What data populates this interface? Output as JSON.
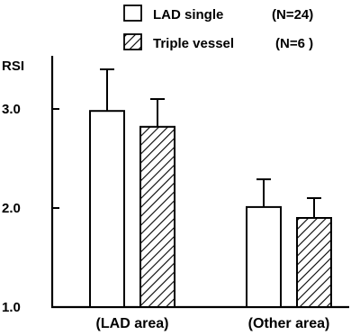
{
  "legend": [
    {
      "label": "LAD single",
      "n_label": "(N=24)",
      "fill": "white"
    },
    {
      "label": "Triple vessel",
      "n_label": "(N=6 )",
      "fill": "hatched"
    }
  ],
  "chart_data": {
    "type": "bar",
    "title": "",
    "ylabel": "RSI",
    "xlabel": "",
    "ylim": [
      1.0,
      4.0
    ],
    "yticks": [
      "1.0",
      "2.0",
      "3.0"
    ],
    "categories": [
      "(LAD area)",
      "(Other area)"
    ],
    "series": [
      {
        "name": "LAD single (N=24)",
        "values": [
          2.98,
          2.01
        ],
        "errors": [
          0.42,
          0.28
        ],
        "fill": "white"
      },
      {
        "name": "Triple vessel (N=6 )",
        "values": [
          2.82,
          1.9
        ],
        "errors": [
          0.28,
          0.2
        ],
        "fill": "hatched"
      }
    ],
    "grid": false,
    "legend_position": "top-right",
    "colors": {
      "stroke": "#000000",
      "background": "#ffffff"
    }
  }
}
